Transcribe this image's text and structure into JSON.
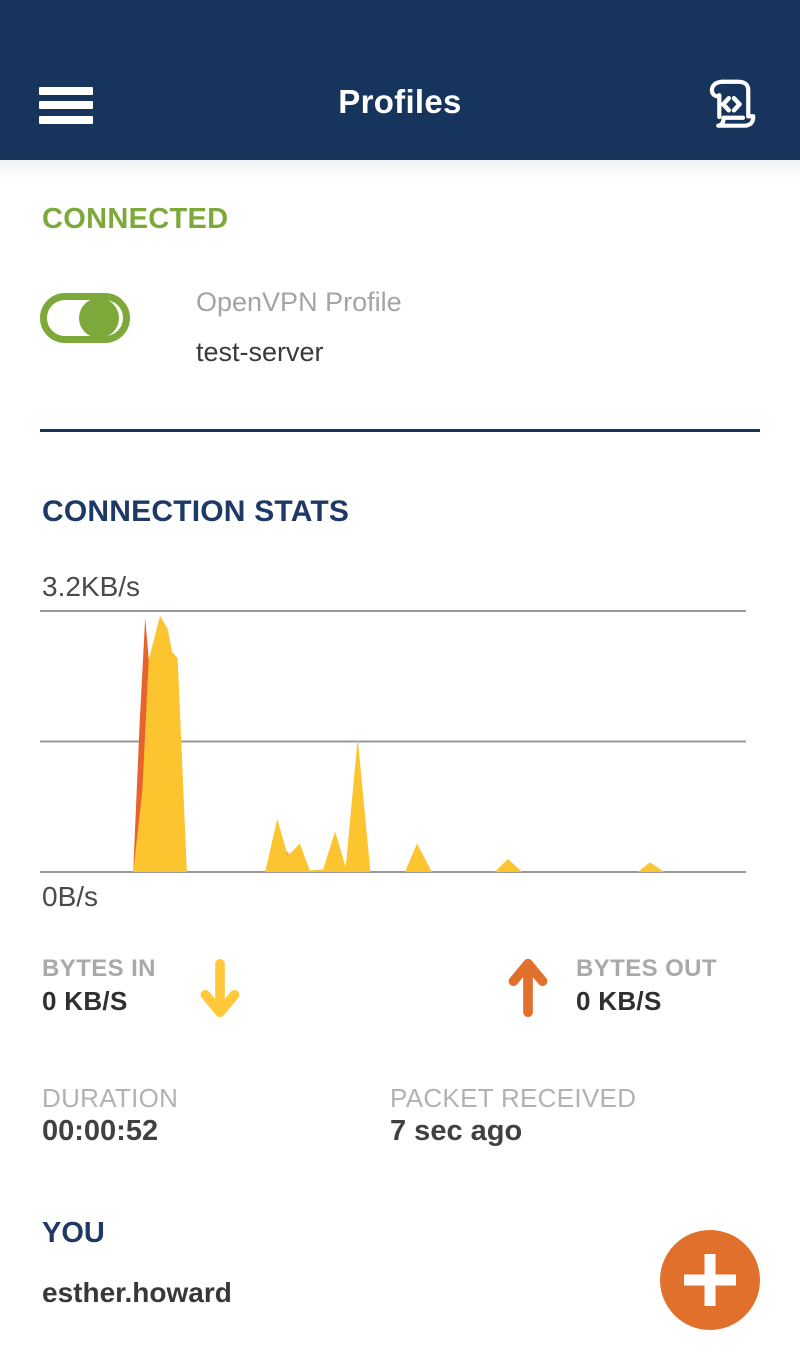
{
  "header": {
    "title": "Profiles"
  },
  "connection": {
    "status_label": "CONNECTED",
    "profile_type": "OpenVPN Profile",
    "profile_name": "test-server",
    "toggle_on": true
  },
  "stats": {
    "section_title": "CONNECTION STATS",
    "bytes_in": {
      "label": "BYTES IN",
      "value": "0 KB/S"
    },
    "bytes_out": {
      "label": "BYTES OUT",
      "value": "0 KB/S"
    },
    "duration": {
      "label": "DURATION",
      "value": "00:00:52"
    },
    "packet_received": {
      "label": "PACKET RECEIVED",
      "value": "7 sec ago"
    }
  },
  "user": {
    "section_title": "YOU",
    "username": "esther.howard"
  },
  "icons": {
    "menu": "hamburger-icon",
    "log": "log-scroll-icon",
    "bytes_in": "down-arrow-icon",
    "bytes_out": "up-arrow-icon",
    "add": "plus-icon"
  },
  "colors": {
    "header_bg": "#17345C",
    "navy_text": "#1E3A64",
    "divider_navy": "#17345C",
    "green": "#7CA93A",
    "chart_yellow": "#FCC52F",
    "chart_orange": "#E8632C",
    "arrow_yellow": "#FFC93A",
    "arrow_orange": "#E2702D",
    "fab_orange": "#E2702D",
    "gridline": "#999999"
  },
  "chart_data": {
    "type": "area",
    "title": "",
    "unit": "KB/s",
    "ylim": [
      0,
      3.2
    ],
    "y_axis_labels": {
      "top": "3.2KB/s",
      "bottom": "0B/s"
    },
    "gridlines_kbps": [
      0,
      1.6,
      3.2
    ],
    "x_axis": "time (recent, unlabeled)",
    "legend": "none",
    "series": [
      {
        "name": "bytes_out",
        "color": "#E8632C",
        "points_x_pct_kbps": [
          [
            0,
            0
          ],
          [
            13.2,
            0
          ],
          [
            14.1,
            1.8
          ],
          [
            14.9,
            3.12
          ],
          [
            15.7,
            2.3
          ],
          [
            16.5,
            0.6
          ],
          [
            17.4,
            0
          ],
          [
            34.6,
            0
          ],
          [
            35.1,
            0.26
          ],
          [
            35.7,
            0
          ],
          [
            100,
            0
          ]
        ]
      },
      {
        "name": "bytes_in",
        "color": "#FCC52F",
        "points_x_pct_kbps": [
          [
            0,
            0
          ],
          [
            13.2,
            0
          ],
          [
            14.5,
            1.0
          ],
          [
            15.4,
            2.6
          ],
          [
            17.0,
            3.14
          ],
          [
            18.1,
            2.98
          ],
          [
            18.7,
            2.7
          ],
          [
            19.5,
            2.62
          ],
          [
            20.8,
            0
          ],
          [
            31.9,
            0
          ],
          [
            33.6,
            0.65
          ],
          [
            35.1,
            0.2
          ],
          [
            36.8,
            0.35
          ],
          [
            38.2,
            0.02
          ],
          [
            40.1,
            0.03
          ],
          [
            41.8,
            0.5
          ],
          [
            43.3,
            0.06
          ],
          [
            45.0,
            1.64
          ],
          [
            46.8,
            0
          ],
          [
            51.7,
            0
          ],
          [
            53.4,
            0.35
          ],
          [
            55.5,
            0
          ],
          [
            64.4,
            0
          ],
          [
            66.3,
            0.16
          ],
          [
            68.3,
            0
          ],
          [
            84.7,
            0
          ],
          [
            86.4,
            0.12
          ],
          [
            88.4,
            0
          ],
          [
            100,
            0
          ]
        ]
      }
    ]
  }
}
